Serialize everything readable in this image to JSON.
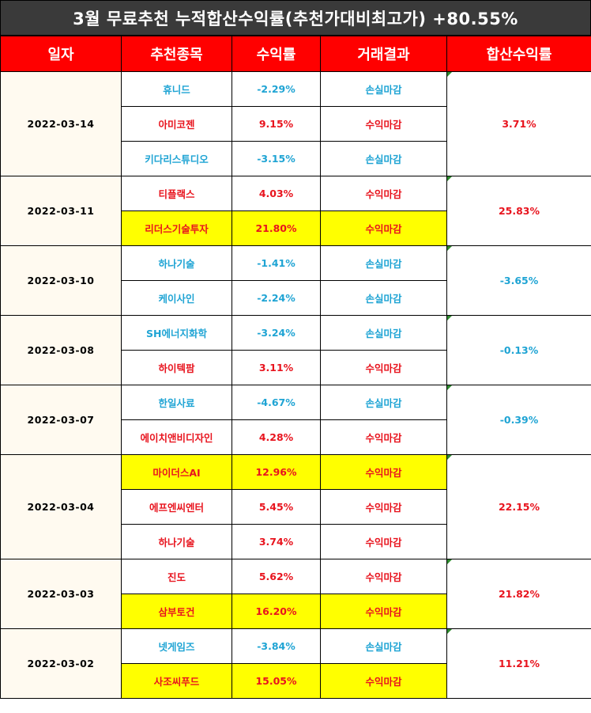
{
  "title": "3월 무료추천 누적합산수익률(추천가대비최고가) +80.55%",
  "headers": [
    "일자",
    "추천종목",
    "수익률",
    "거래결과",
    "합산수익률"
  ],
  "colors": {
    "loss": "#1fa4d4",
    "gain": "#e8141e",
    "highlight": "#ffff00",
    "header": "#ff0000"
  },
  "groups": [
    {
      "date": "2022-03-14",
      "total": "3.71%",
      "total_status": "gain",
      "rows": [
        {
          "stock": "휴니드",
          "rate": "-2.29%",
          "result": "손실마감",
          "status": "loss",
          "highlight": false
        },
        {
          "stock": "아미코젠",
          "rate": "9.15%",
          "result": "수익마감",
          "status": "gain",
          "highlight": false
        },
        {
          "stock": "키다리스튜디오",
          "rate": "-3.15%",
          "result": "손실마감",
          "status": "loss",
          "highlight": false
        }
      ]
    },
    {
      "date": "2022-03-11",
      "total": "25.83%",
      "total_status": "gain",
      "rows": [
        {
          "stock": "티플랙스",
          "rate": "4.03%",
          "result": "수익마감",
          "status": "gain",
          "highlight": false
        },
        {
          "stock": "리더스기술투자",
          "rate": "21.80%",
          "result": "수익마감",
          "status": "gain",
          "highlight": true
        }
      ]
    },
    {
      "date": "2022-03-10",
      "total": "-3.65%",
      "total_status": "loss",
      "rows": [
        {
          "stock": "하나기술",
          "rate": "-1.41%",
          "result": "손실마감",
          "status": "loss",
          "highlight": false
        },
        {
          "stock": "케이사인",
          "rate": "-2.24%",
          "result": "손실마감",
          "status": "loss",
          "highlight": false
        }
      ]
    },
    {
      "date": "2022-03-08",
      "total": "-0.13%",
      "total_status": "loss",
      "rows": [
        {
          "stock": "SH에너지화학",
          "rate": "-3.24%",
          "result": "손실마감",
          "status": "loss",
          "highlight": false
        },
        {
          "stock": "하이텍팜",
          "rate": "3.11%",
          "result": "수익마감",
          "status": "gain",
          "highlight": false
        }
      ]
    },
    {
      "date": "2022-03-07",
      "total": "-0.39%",
      "total_status": "loss",
      "rows": [
        {
          "stock": "한일사료",
          "rate": "-4.67%",
          "result": "손실마감",
          "status": "loss",
          "highlight": false
        },
        {
          "stock": "에이치앤비디자인",
          "rate": "4.28%",
          "result": "수익마감",
          "status": "gain",
          "highlight": false
        }
      ]
    },
    {
      "date": "2022-03-04",
      "total": "22.15%",
      "total_status": "gain",
      "rows": [
        {
          "stock": "마이더스AI",
          "rate": "12.96%",
          "result": "수익마감",
          "status": "gain",
          "highlight": true
        },
        {
          "stock": "에프엔씨엔터",
          "rate": "5.45%",
          "result": "수익마감",
          "status": "gain",
          "highlight": false
        },
        {
          "stock": "하나기술",
          "rate": "3.74%",
          "result": "수익마감",
          "status": "gain",
          "highlight": false
        }
      ]
    },
    {
      "date": "2022-03-03",
      "total": "21.82%",
      "total_status": "gain",
      "rows": [
        {
          "stock": "진도",
          "rate": "5.62%",
          "result": "수익마감",
          "status": "gain",
          "highlight": false
        },
        {
          "stock": "삼부토건",
          "rate": "16.20%",
          "result": "수익마감",
          "status": "gain",
          "highlight": true
        }
      ]
    },
    {
      "date": "2022-03-02",
      "total": "11.21%",
      "total_status": "gain",
      "rows": [
        {
          "stock": "넷게임즈",
          "rate": "-3.84%",
          "result": "손실마감",
          "status": "loss",
          "highlight": false
        },
        {
          "stock": "사조씨푸드",
          "rate": "15.05%",
          "result": "수익마감",
          "status": "gain",
          "highlight": true
        }
      ]
    }
  ]
}
